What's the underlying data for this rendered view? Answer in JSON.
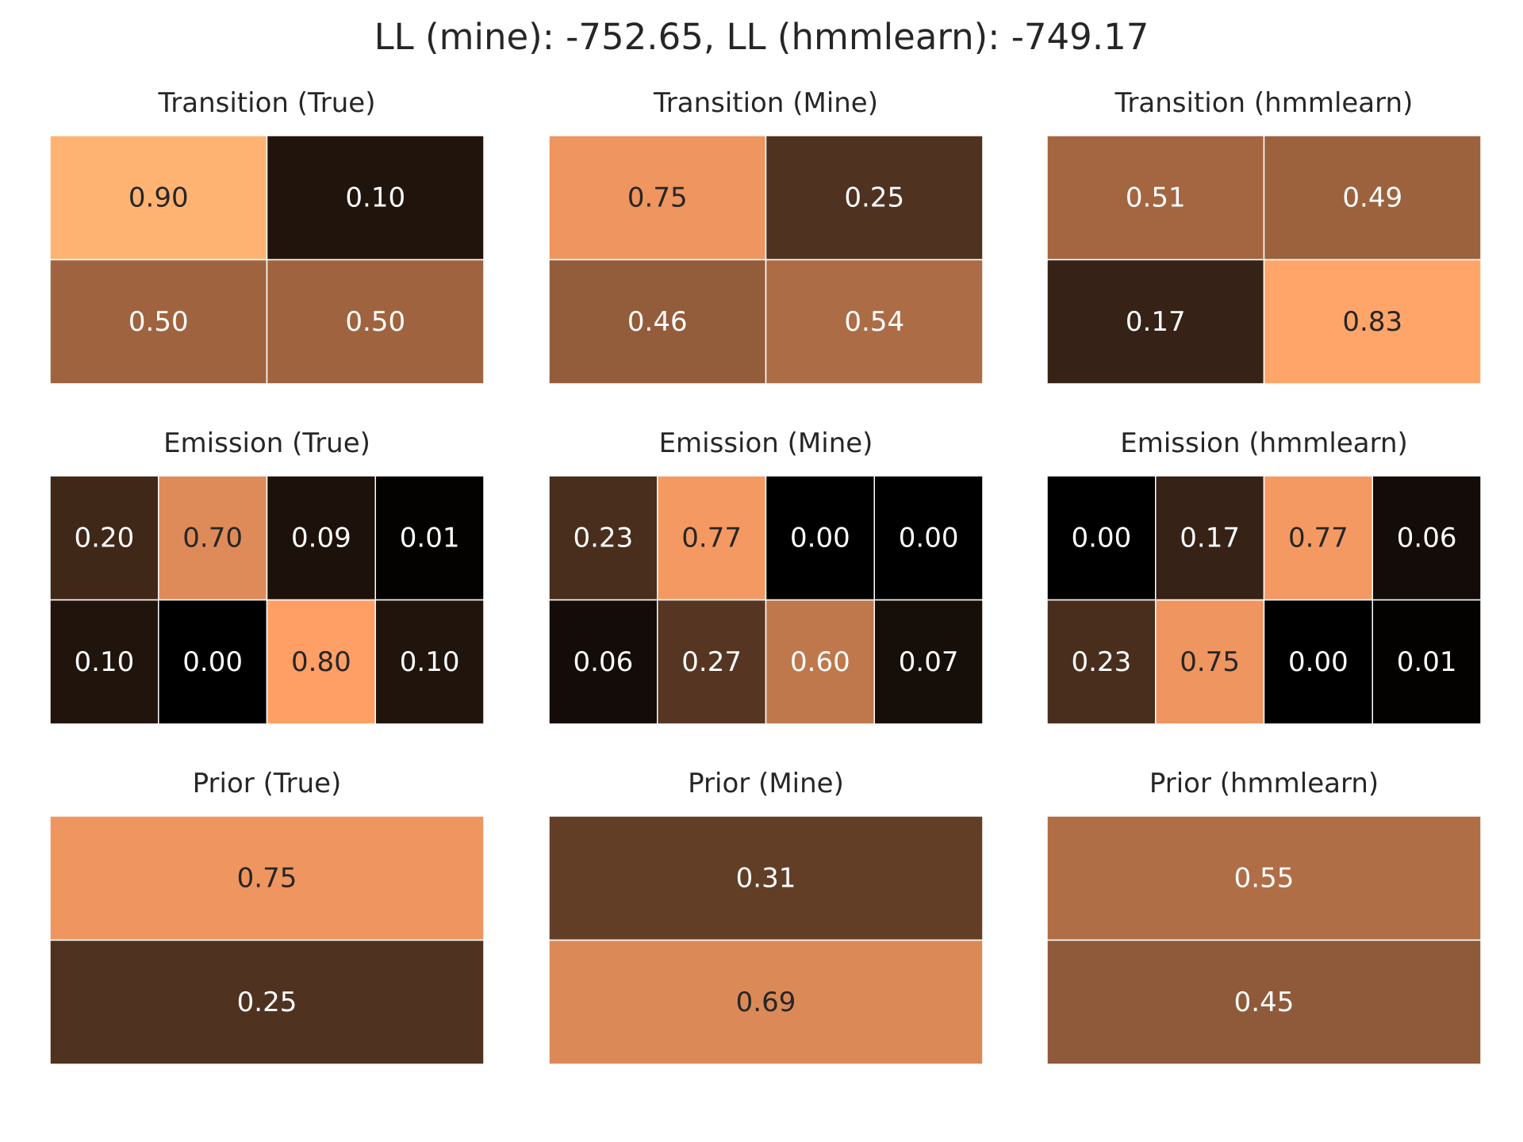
{
  "figure": {
    "suptitle": "LL (mine): -752.65, LL (hmmlearn): -749.17"
  },
  "colormap": {
    "name": "copper",
    "dark_text_color": "#262626",
    "light_text_color": "#ffffff",
    "cell_border_color": "#ffffff"
  },
  "chart_data": [
    {
      "type": "heatmap",
      "title": "Transition (True)",
      "rows": 2,
      "cols": 2,
      "values": [
        [
          0.9,
          0.1
        ],
        [
          0.5,
          0.5
        ]
      ],
      "labels": [
        [
          "0.90",
          "0.10"
        ],
        [
          "0.50",
          "0.50"
        ]
      ]
    },
    {
      "type": "heatmap",
      "title": "Transition (Mine)",
      "rows": 2,
      "cols": 2,
      "values": [
        [
          0.75,
          0.25
        ],
        [
          0.46,
          0.54
        ]
      ],
      "labels": [
        [
          "0.75",
          "0.25"
        ],
        [
          "0.46",
          "0.54"
        ]
      ]
    },
    {
      "type": "heatmap",
      "title": "Transition (hmmlearn)",
      "rows": 2,
      "cols": 2,
      "values": [
        [
          0.51,
          0.49
        ],
        [
          0.17,
          0.83
        ]
      ],
      "labels": [
        [
          "0.51",
          "0.49"
        ],
        [
          "0.17",
          "0.83"
        ]
      ]
    },
    {
      "type": "heatmap",
      "title": "Emission (True)",
      "rows": 2,
      "cols": 4,
      "values": [
        [
          0.2,
          0.7,
          0.09,
          0.01
        ],
        [
          0.1,
          0.0,
          0.8,
          0.1
        ]
      ],
      "labels": [
        [
          "0.20",
          "0.70",
          "0.09",
          "0.01"
        ],
        [
          "0.10",
          "0.00",
          "0.80",
          "0.10"
        ]
      ]
    },
    {
      "type": "heatmap",
      "title": "Emission (Mine)",
      "rows": 2,
      "cols": 4,
      "values": [
        [
          0.23,
          0.77,
          0.0,
          0.0
        ],
        [
          0.06,
          0.27,
          0.6,
          0.07
        ]
      ],
      "labels": [
        [
          "0.23",
          "0.77",
          "0.00",
          "0.00"
        ],
        [
          "0.06",
          "0.27",
          "0.60",
          "0.07"
        ]
      ]
    },
    {
      "type": "heatmap",
      "title": "Emission (hmmlearn)",
      "rows": 2,
      "cols": 4,
      "values": [
        [
          0.0,
          0.17,
          0.77,
          0.06
        ],
        [
          0.23,
          0.75,
          0.0,
          0.01
        ]
      ],
      "labels": [
        [
          "0.00",
          "0.17",
          "0.77",
          "0.06"
        ],
        [
          "0.23",
          "0.75",
          "0.00",
          "0.01"
        ]
      ]
    },
    {
      "type": "heatmap",
      "title": "Prior (True)",
      "rows": 2,
      "cols": 1,
      "values": [
        [
          0.75
        ],
        [
          0.25
        ]
      ],
      "labels": [
        [
          "0.75"
        ],
        [
          "0.25"
        ]
      ]
    },
    {
      "type": "heatmap",
      "title": "Prior (Mine)",
      "rows": 2,
      "cols": 1,
      "values": [
        [
          0.31
        ],
        [
          0.69
        ]
      ],
      "labels": [
        [
          "0.31"
        ],
        [
          "0.69"
        ]
      ]
    },
    {
      "type": "heatmap",
      "title": "Prior (hmmlearn)",
      "rows": 2,
      "cols": 1,
      "values": [
        [
          0.55
        ],
        [
          0.45
        ]
      ],
      "labels": [
        [
          "0.55"
        ],
        [
          "0.45"
        ]
      ]
    }
  ]
}
